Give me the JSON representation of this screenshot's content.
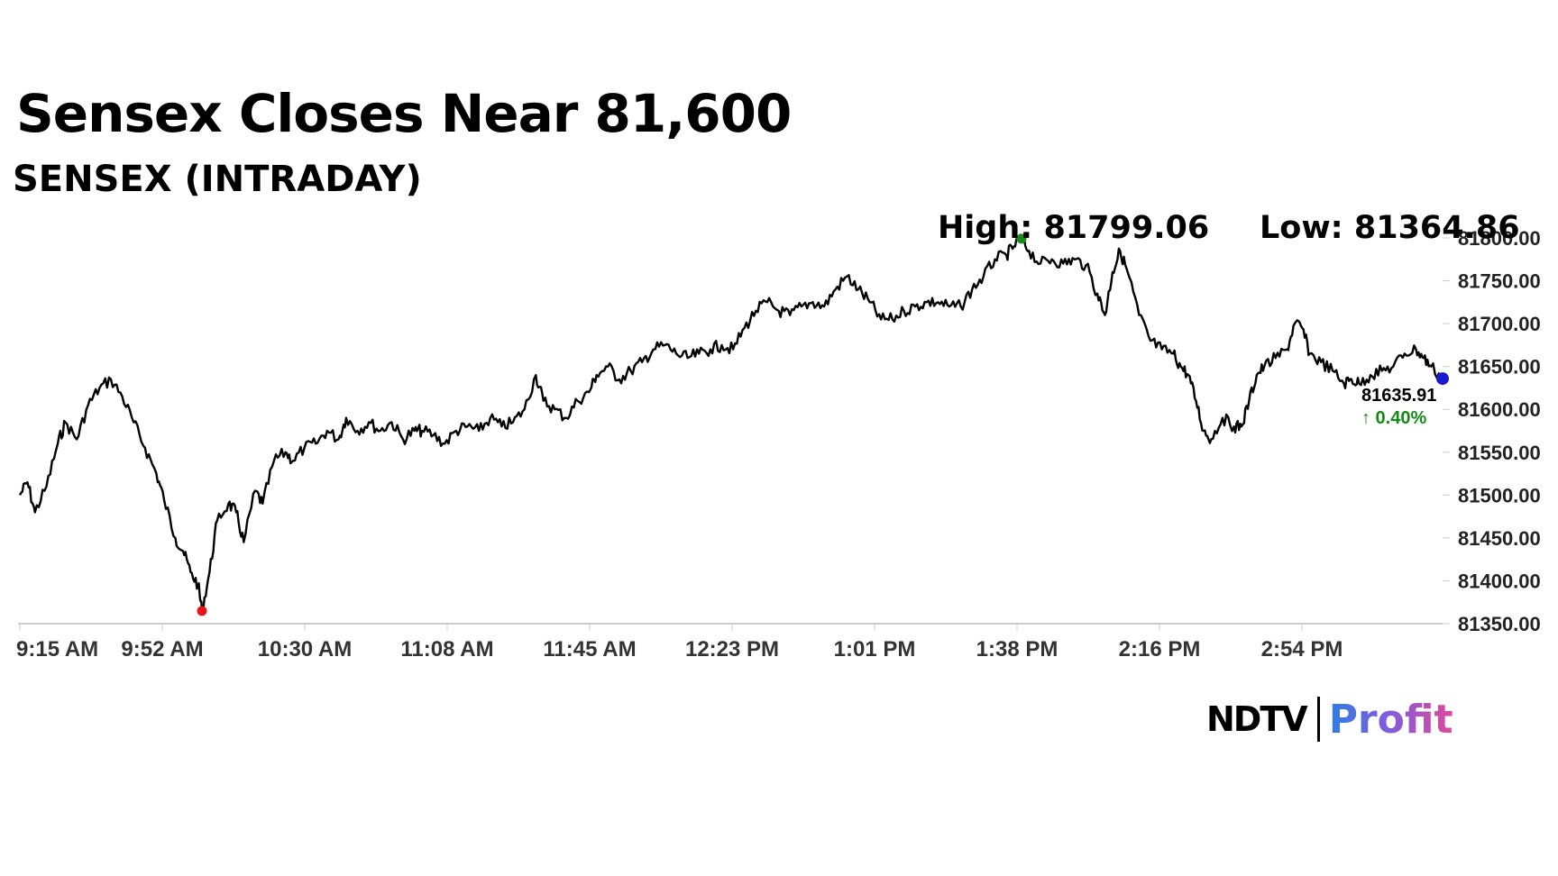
{
  "header": {
    "title": "Sensex Closes Near 81,600",
    "subtitle": "SENSEX (INTRADAY)"
  },
  "stats": {
    "high_label": "High: 81799.06",
    "low_label": "Low: 81364.86"
  },
  "last": {
    "price": "81635.91",
    "change": "↑ 0.40%"
  },
  "logo": {
    "ndtv": "NDTV",
    "profit": "Profit"
  },
  "colors": {
    "line": "#000000",
    "high_marker": "#1a8a1a",
    "low_marker": "#e8141c",
    "last_marker": "#1a1acc",
    "change_text": "#148a14",
    "axis": "#cccccc"
  },
  "chart_data": {
    "type": "line",
    "title": "SENSEX (INTRADAY)",
    "x_ticks": [
      "9:15 AM",
      "9:52 AM",
      "10:30 AM",
      "11:08 AM",
      "11:45 AM",
      "12:23 PM",
      "1:01 PM",
      "1:38 PM",
      "2:16 PM",
      "2:54 PM"
    ],
    "y_ticks": [
      "81350.00",
      "81400.00",
      "81450.00",
      "81500.00",
      "81550.00",
      "81600.00",
      "81650.00",
      "81700.00",
      "81750.00",
      "81800.00"
    ],
    "ylim": [
      81350,
      81800
    ],
    "x_range": [
      "9:15",
      "15:30"
    ],
    "grid": false,
    "high": {
      "time": "13:39",
      "value": 81799.06
    },
    "low": {
      "time": "10:03",
      "value": 81364.86
    },
    "close": {
      "time": "15:30",
      "value": 81635.91
    },
    "series": [
      {
        "points": [
          [
            "9:15",
            81500
          ],
          [
            "9:17",
            81515
          ],
          [
            "9:19",
            81480
          ],
          [
            "9:22",
            81510
          ],
          [
            "9:25",
            81560
          ],
          [
            "9:27",
            81585
          ],
          [
            "9:30",
            81565
          ],
          [
            "9:33",
            81605
          ],
          [
            "9:36",
            81625
          ],
          [
            "9:39",
            81635
          ],
          [
            "9:42",
            81615
          ],
          [
            "9:45",
            81585
          ],
          [
            "9:48",
            81555
          ],
          [
            "9:51",
            81525
          ],
          [
            "9:53",
            81495
          ],
          [
            "9:56",
            81450
          ],
          [
            "9:58",
            81435
          ],
          [
            "10:00",
            81410
          ],
          [
            "10:02",
            81395
          ],
          [
            "10:03",
            81364.86
          ],
          [
            "10:05",
            81410
          ],
          [
            "10:07",
            81470
          ],
          [
            "10:10",
            81490
          ],
          [
            "10:12",
            81480
          ],
          [
            "10:14",
            81445
          ],
          [
            "10:17",
            81505
          ],
          [
            "10:19",
            81490
          ],
          [
            "10:22",
            81540
          ],
          [
            "10:25",
            81550
          ],
          [
            "10:27",
            81540
          ],
          [
            "10:30",
            81555
          ],
          [
            "10:33",
            81560
          ],
          [
            "10:36",
            81575
          ],
          [
            "10:39",
            81565
          ],
          [
            "10:41",
            81590
          ],
          [
            "10:44",
            81575
          ],
          [
            "10:47",
            81585
          ],
          [
            "10:50",
            81575
          ],
          [
            "10:53",
            81585
          ],
          [
            "10:56",
            81565
          ],
          [
            "10:59",
            81575
          ],
          [
            "11:01",
            81575
          ],
          [
            "11:04",
            81570
          ],
          [
            "11:07",
            81560
          ],
          [
            "11:10",
            81575
          ],
          [
            "11:13",
            81580
          ],
          [
            "11:16",
            81575
          ],
          [
            "11:19",
            81590
          ],
          [
            "11:22",
            81580
          ],
          [
            "11:25",
            81585
          ],
          [
            "11:28",
            81600
          ],
          [
            "11:31",
            81640
          ],
          [
            "11:33",
            81610
          ],
          [
            "11:36",
            81600
          ],
          [
            "11:39",
            81590
          ],
          [
            "11:42",
            81610
          ],
          [
            "11:45",
            81620
          ],
          [
            "11:47",
            81640
          ],
          [
            "11:50",
            81650
          ],
          [
            "11:53",
            81635
          ],
          [
            "11:56",
            81645
          ],
          [
            "11:59",
            81655
          ],
          [
            "12:02",
            81670
          ],
          [
            "12:05",
            81675
          ],
          [
            "12:08",
            81665
          ],
          [
            "12:11",
            81660
          ],
          [
            "12:14",
            81665
          ],
          [
            "12:17",
            81670
          ],
          [
            "12:20",
            81675
          ],
          [
            "12:23",
            81670
          ],
          [
            "12:26",
            81695
          ],
          [
            "12:29",
            81715
          ],
          [
            "12:32",
            81725
          ],
          [
            "12:35",
            81715
          ],
          [
            "12:38",
            81710
          ],
          [
            "12:41",
            81720
          ],
          [
            "12:44",
            81725
          ],
          [
            "12:47",
            81720
          ],
          [
            "12:50",
            81740
          ],
          [
            "12:53",
            81755
          ],
          [
            "12:56",
            81740
          ],
          [
            "12:59",
            81725
          ],
          [
            "13:02",
            81705
          ],
          [
            "13:05",
            81705
          ],
          [
            "13:08",
            81715
          ],
          [
            "13:11",
            81720
          ],
          [
            "13:14",
            81725
          ],
          [
            "13:17",
            81725
          ],
          [
            "13:20",
            81720
          ],
          [
            "13:23",
            81720
          ],
          [
            "13:26",
            81740
          ],
          [
            "13:29",
            81755
          ],
          [
            "13:32",
            81775
          ],
          [
            "13:35",
            81780
          ],
          [
            "13:37",
            81790
          ],
          [
            "13:39",
            81799.06
          ],
          [
            "13:41",
            81785
          ],
          [
            "13:44",
            81770
          ],
          [
            "13:47",
            81775
          ],
          [
            "13:50",
            81770
          ],
          [
            "13:53",
            81775
          ],
          [
            "13:56",
            81768
          ],
          [
            "13:59",
            81735
          ],
          [
            "14:01",
            81710
          ],
          [
            "14:03",
            81760
          ],
          [
            "14:05",
            81785
          ],
          [
            "14:07",
            81760
          ],
          [
            "14:10",
            81710
          ],
          [
            "14:13",
            81680
          ],
          [
            "14:16",
            81670
          ],
          [
            "14:19",
            81665
          ],
          [
            "14:21",
            81650
          ],
          [
            "14:23",
            81640
          ],
          [
            "14:25",
            81610
          ],
          [
            "14:27",
            81575
          ],
          [
            "14:29",
            81565
          ],
          [
            "14:32",
            81590
          ],
          [
            "14:35",
            81580
          ],
          [
            "14:37",
            81580
          ],
          [
            "14:39",
            81610
          ],
          [
            "14:41",
            81640
          ],
          [
            "14:43",
            81650
          ],
          [
            "14:46",
            81660
          ],
          [
            "14:49",
            81670
          ],
          [
            "14:51",
            81700
          ],
          [
            "14:53",
            81695
          ],
          [
            "14:55",
            81665
          ],
          [
            "14:58",
            81655
          ],
          [
            "15:01",
            81645
          ],
          [
            "15:04",
            81630
          ],
          [
            "15:06",
            81635
          ],
          [
            "15:08",
            81630
          ],
          [
            "15:11",
            81640
          ],
          [
            "15:14",
            81645
          ],
          [
            "15:17",
            81650
          ],
          [
            "15:20",
            81665
          ],
          [
            "15:23",
            81670
          ],
          [
            "15:25",
            81660
          ],
          [
            "15:27",
            81650
          ],
          [
            "15:30",
            81635.91
          ]
        ]
      }
    ]
  }
}
